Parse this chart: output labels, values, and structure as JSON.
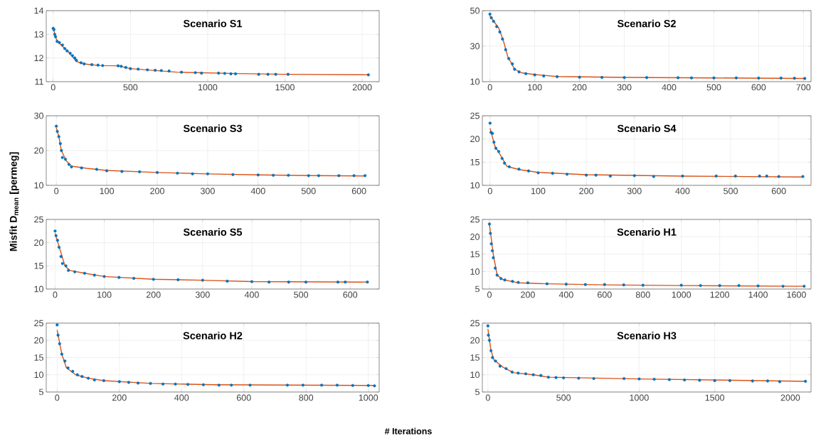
{
  "chart_data": [
    {
      "type": "scatter",
      "marker": "circle",
      "title": "Scenario S1",
      "xlim": [
        -45,
        2110
      ],
      "xticks": [
        0,
        500,
        1000,
        1500,
        2000
      ],
      "ylim": [
        11,
        14
      ],
      "yticks": [
        11,
        12,
        13,
        14
      ],
      "grid": true,
      "series": [
        {
          "color": "#0072bd",
          "x": [
            0,
            5,
            10,
            15,
            25,
            40,
            60,
            75,
            90,
            110,
            125,
            140,
            150,
            180,
            200,
            250,
            290,
            320,
            420,
            440,
            470,
            500,
            550,
            610,
            660,
            700,
            750,
            830,
            920,
            960,
            1070,
            1110,
            1150,
            1180,
            1330,
            1390,
            1440,
            1520,
            2040
          ],
          "values": [
            13.25,
            13.2,
            13.0,
            12.9,
            12.7,
            12.65,
            12.55,
            12.4,
            12.3,
            12.2,
            12.1,
            12.0,
            11.9,
            11.8,
            11.75,
            11.72,
            11.7,
            11.68,
            11.67,
            11.65,
            11.6,
            11.55,
            11.53,
            11.5,
            11.48,
            11.47,
            11.45,
            11.4,
            11.38,
            11.36,
            11.36,
            11.35,
            11.33,
            11.33,
            11.31,
            11.31,
            11.31,
            11.31,
            11.29
          ]
        },
        {
          "type": "line",
          "marker": "none",
          "color": "#d95319",
          "x": [
            0,
            20,
            50,
            100,
            150,
            200,
            300,
            420,
            500,
            800,
            1200,
            1500,
            2040
          ],
          "values": [
            13.25,
            12.8,
            12.55,
            12.25,
            11.85,
            11.75,
            11.68,
            11.67,
            11.55,
            11.4,
            11.34,
            11.31,
            11.29
          ]
        }
      ]
    },
    {
      "type": "scatter",
      "marker": "circle",
      "title": "Scenario S2",
      "xlim": [
        -17,
        717
      ],
      "xticks": [
        0,
        100,
        200,
        300,
        400,
        500,
        600,
        700
      ],
      "ylim": [
        10,
        50
      ],
      "yticks": [
        10,
        30,
        50
      ],
      "grid": true,
      "series": [
        {
          "color": "#0072bd",
          "x": [
            0,
            3,
            8,
            15,
            22,
            28,
            35,
            42,
            50,
            55,
            65,
            80,
            100,
            120,
            150,
            200,
            250,
            300,
            350,
            420,
            450,
            500,
            550,
            600,
            650,
            680,
            703
          ],
          "values": [
            48,
            46,
            44,
            41,
            38,
            34,
            28,
            23,
            20,
            17,
            15.5,
            14.5,
            13.8,
            13.2,
            12.8,
            12.5,
            12.4,
            12.3,
            12.3,
            12.2,
            12.1,
            12.1,
            12.1,
            12.0,
            12.0,
            11.9,
            11.8
          ]
        },
        {
          "type": "line",
          "marker": "none",
          "color": "#d95319",
          "x": [
            0,
            20,
            30,
            40,
            55,
            70,
            100,
            150,
            300,
            500,
            703
          ],
          "values": [
            47,
            40,
            33,
            24,
            17,
            15,
            14,
            12.9,
            12.4,
            12.1,
            11.8
          ]
        }
      ]
    },
    {
      "type": "scatter",
      "marker": "circle",
      "title": "Scenario S3",
      "ylabel": "Misfit D$_{mean}$ [permeg]",
      "xlim": [
        -20,
        640
      ],
      "xticks": [
        0,
        100,
        200,
        300,
        400,
        500,
        600
      ],
      "ylim": [
        10,
        30
      ],
      "yticks": [
        10,
        20,
        30
      ],
      "grid": true,
      "series": [
        {
          "color": "#0072bd",
          "x": [
            0,
            2,
            5,
            8,
            10,
            12,
            18,
            25,
            30,
            50,
            80,
            100,
            130,
            165,
            200,
            240,
            270,
            300,
            350,
            400,
            430,
            460,
            500,
            520,
            560,
            590,
            612
          ],
          "values": [
            27,
            25.5,
            24,
            22,
            20,
            18,
            17.5,
            16,
            15.3,
            15,
            14.6,
            14.2,
            14.0,
            13.9,
            13.7,
            13.5,
            13.3,
            13.3,
            13.1,
            13.0,
            12.9,
            12.9,
            12.8,
            12.8,
            12.8,
            12.8,
            12.8
          ]
        },
        {
          "type": "line",
          "marker": "none",
          "color": "#d95319",
          "x": [
            0,
            5,
            10,
            20,
            30,
            60,
            100,
            200,
            300,
            400,
            500,
            612
          ],
          "values": [
            26.5,
            24,
            20,
            17,
            15.5,
            14.9,
            14.3,
            13.7,
            13.3,
            13.0,
            12.8,
            12.7
          ]
        }
      ]
    },
    {
      "type": "scatter",
      "marker": "circle",
      "title": "Scenario S4",
      "xlim": [
        -16,
        667
      ],
      "xticks": [
        0,
        100,
        200,
        300,
        400,
        500,
        600
      ],
      "ylim": [
        10,
        25
      ],
      "yticks": [
        10,
        15,
        20,
        25
      ],
      "grid": true,
      "series": [
        {
          "color": "#0072bd",
          "x": [
            0,
            2,
            5,
            8,
            12,
            18,
            25,
            30,
            40,
            60,
            80,
            100,
            130,
            160,
            200,
            220,
            250,
            300,
            340,
            400,
            470,
            510,
            560,
            575,
            600,
            650
          ],
          "values": [
            23.4,
            21.4,
            21.2,
            19.3,
            18,
            17.3,
            15.8,
            14.8,
            14,
            13.5,
            13.1,
            12.7,
            12.6,
            12.4,
            12.2,
            12.2,
            12.0,
            12.1,
            11.9,
            12.0,
            12.0,
            12.0,
            12.0,
            12.0,
            11.9,
            11.9
          ]
        },
        {
          "type": "line",
          "marker": "none",
          "color": "#d95319",
          "x": [
            0,
            10,
            20,
            35,
            60,
            100,
            200,
            400,
            650
          ],
          "values": [
            22.3,
            18.5,
            16.8,
            14.1,
            13.4,
            12.8,
            12.3,
            12.0,
            11.8
          ]
        }
      ]
    },
    {
      "type": "scatter",
      "marker": "circle",
      "title": "Scenario S5",
      "xlim": [
        -18,
        659
      ],
      "xticks": [
        0,
        100,
        200,
        300,
        400,
        500,
        600
      ],
      "ylim": [
        10,
        25
      ],
      "yticks": [
        10,
        15,
        20,
        25
      ],
      "grid": true,
      "series": [
        {
          "color": "#0072bd",
          "x": [
            0,
            2,
            5,
            8,
            12,
            15,
            22,
            27,
            40,
            60,
            80,
            100,
            130,
            160,
            200,
            250,
            300,
            350,
            400,
            435,
            475,
            510,
            575,
            590,
            635
          ],
          "values": [
            22.5,
            21.5,
            20.5,
            19,
            17,
            15.5,
            15,
            14,
            13.7,
            13.4,
            13,
            12.7,
            12.5,
            12.3,
            12.1,
            12.0,
            11.9,
            11.7,
            11.6,
            11.5,
            11.5,
            11.5,
            11.5,
            11.5,
            11.5
          ]
        },
        {
          "type": "line",
          "marker": "none",
          "color": "#d95319",
          "x": [
            0,
            10,
            20,
            30,
            60,
            100,
            200,
            300,
            400,
            635
          ],
          "values": [
            22,
            18.5,
            15,
            14,
            13.4,
            12.7,
            12.1,
            11.9,
            11.6,
            11.5
          ]
        }
      ]
    },
    {
      "type": "scatter",
      "marker": "circle",
      "title": "Scenario H1",
      "xlim": [
        -37,
        1676
      ],
      "xticks": [
        0,
        200,
        400,
        600,
        800,
        1000,
        1200,
        1400,
        1600
      ],
      "ylim": [
        5,
        25
      ],
      "yticks": [
        5,
        10,
        15,
        20,
        25
      ],
      "grid": true,
      "series": [
        {
          "color": "#0072bd",
          "x": [
            0,
            5,
            10,
            15,
            20,
            30,
            40,
            60,
            80,
            120,
            150,
            200,
            300,
            400,
            500,
            600,
            700,
            800,
            1000,
            1100,
            1200,
            1300,
            1400,
            1530,
            1640
          ],
          "values": [
            23.7,
            21,
            18,
            16,
            14,
            11,
            9,
            8,
            7.6,
            7.2,
            6.9,
            6.8,
            6.5,
            6.4,
            6.3,
            6.3,
            6.2,
            6.1,
            6.1,
            6.0,
            6.0,
            6.0,
            5.9,
            5.8,
            5.8
          ]
        },
        {
          "type": "line",
          "marker": "none",
          "color": "#d95319",
          "x": [
            0,
            20,
            40,
            70,
            150,
            300,
            600,
            1000,
            1640
          ],
          "values": [
            23.5,
            15,
            9,
            7.7,
            6.8,
            6.5,
            6.2,
            6.0,
            5.8
          ]
        }
      ]
    },
    {
      "type": "scatter",
      "marker": "circle",
      "title": "Scenario H2",
      "xlabel": "# Iterations",
      "xlim": [
        -35,
        1035
      ],
      "xticks": [
        0,
        200,
        400,
        600,
        800,
        1000
      ],
      "ylim": [
        5,
        25
      ],
      "yticks": [
        5,
        10,
        15,
        20,
        25
      ],
      "grid": true,
      "series": [
        {
          "color": "#0072bd",
          "x": [
            0,
            3,
            8,
            15,
            25,
            35,
            50,
            65,
            80,
            100,
            120,
            150,
            200,
            230,
            260,
            300,
            340,
            380,
            420,
            470,
            520,
            560,
            620,
            740,
            790,
            850,
            900,
            950,
            1000,
            1020
          ],
          "values": [
            24.5,
            21.5,
            19,
            16,
            14,
            12,
            11,
            10,
            9.5,
            9,
            8.5,
            8.3,
            8,
            7.8,
            7.6,
            7.5,
            7.3,
            7.3,
            7.2,
            7.1,
            7.0,
            7.0,
            7.0,
            7.0,
            7.0,
            7.0,
            7.0,
            6.9,
            6.9,
            6.8
          ]
        },
        {
          "type": "line",
          "marker": "none",
          "color": "#d95319",
          "x": [
            0,
            15,
            30,
            60,
            100,
            150,
            300,
            500,
            1020
          ],
          "values": [
            23,
            16,
            12,
            10,
            9,
            8.3,
            7.5,
            7.1,
            6.9
          ]
        }
      ]
    },
    {
      "type": "scatter",
      "marker": "circle",
      "title": "Scenario H3",
      "xlim": [
        -37,
        2137
      ],
      "xticks": [
        0,
        500,
        1000,
        1500,
        2000
      ],
      "ylim": [
        5,
        25
      ],
      "yticks": [
        5,
        10,
        15,
        20,
        25
      ],
      "grid": true,
      "series": [
        {
          "color": "#0072bd",
          "x": [
            0,
            3,
            10,
            20,
            30,
            50,
            80,
            120,
            160,
            200,
            250,
            300,
            350,
            400,
            450,
            500,
            600,
            700,
            900,
            1000,
            1100,
            1200,
            1300,
            1400,
            1500,
            1600,
            1750,
            1850,
            1930,
            2100
          ],
          "values": [
            24.2,
            21.5,
            20,
            17,
            15,
            14,
            12.5,
            11.8,
            10.8,
            10.5,
            10.3,
            10,
            9.8,
            9.3,
            9.2,
            9.1,
            9.0,
            8.9,
            8.9,
            8.8,
            8.7,
            8.6,
            8.5,
            8.4,
            8.3,
            8.3,
            8.2,
            8.2,
            8.0,
            8.1
          ]
        },
        {
          "type": "line",
          "marker": "none",
          "color": "#d95319",
          "x": [
            0,
            20,
            40,
            100,
            170,
            300,
            400,
            1000,
            2100
          ],
          "values": [
            23.3,
            17,
            14.3,
            12.2,
            10.6,
            10,
            9.3,
            8.8,
            8.1
          ]
        }
      ]
    }
  ]
}
